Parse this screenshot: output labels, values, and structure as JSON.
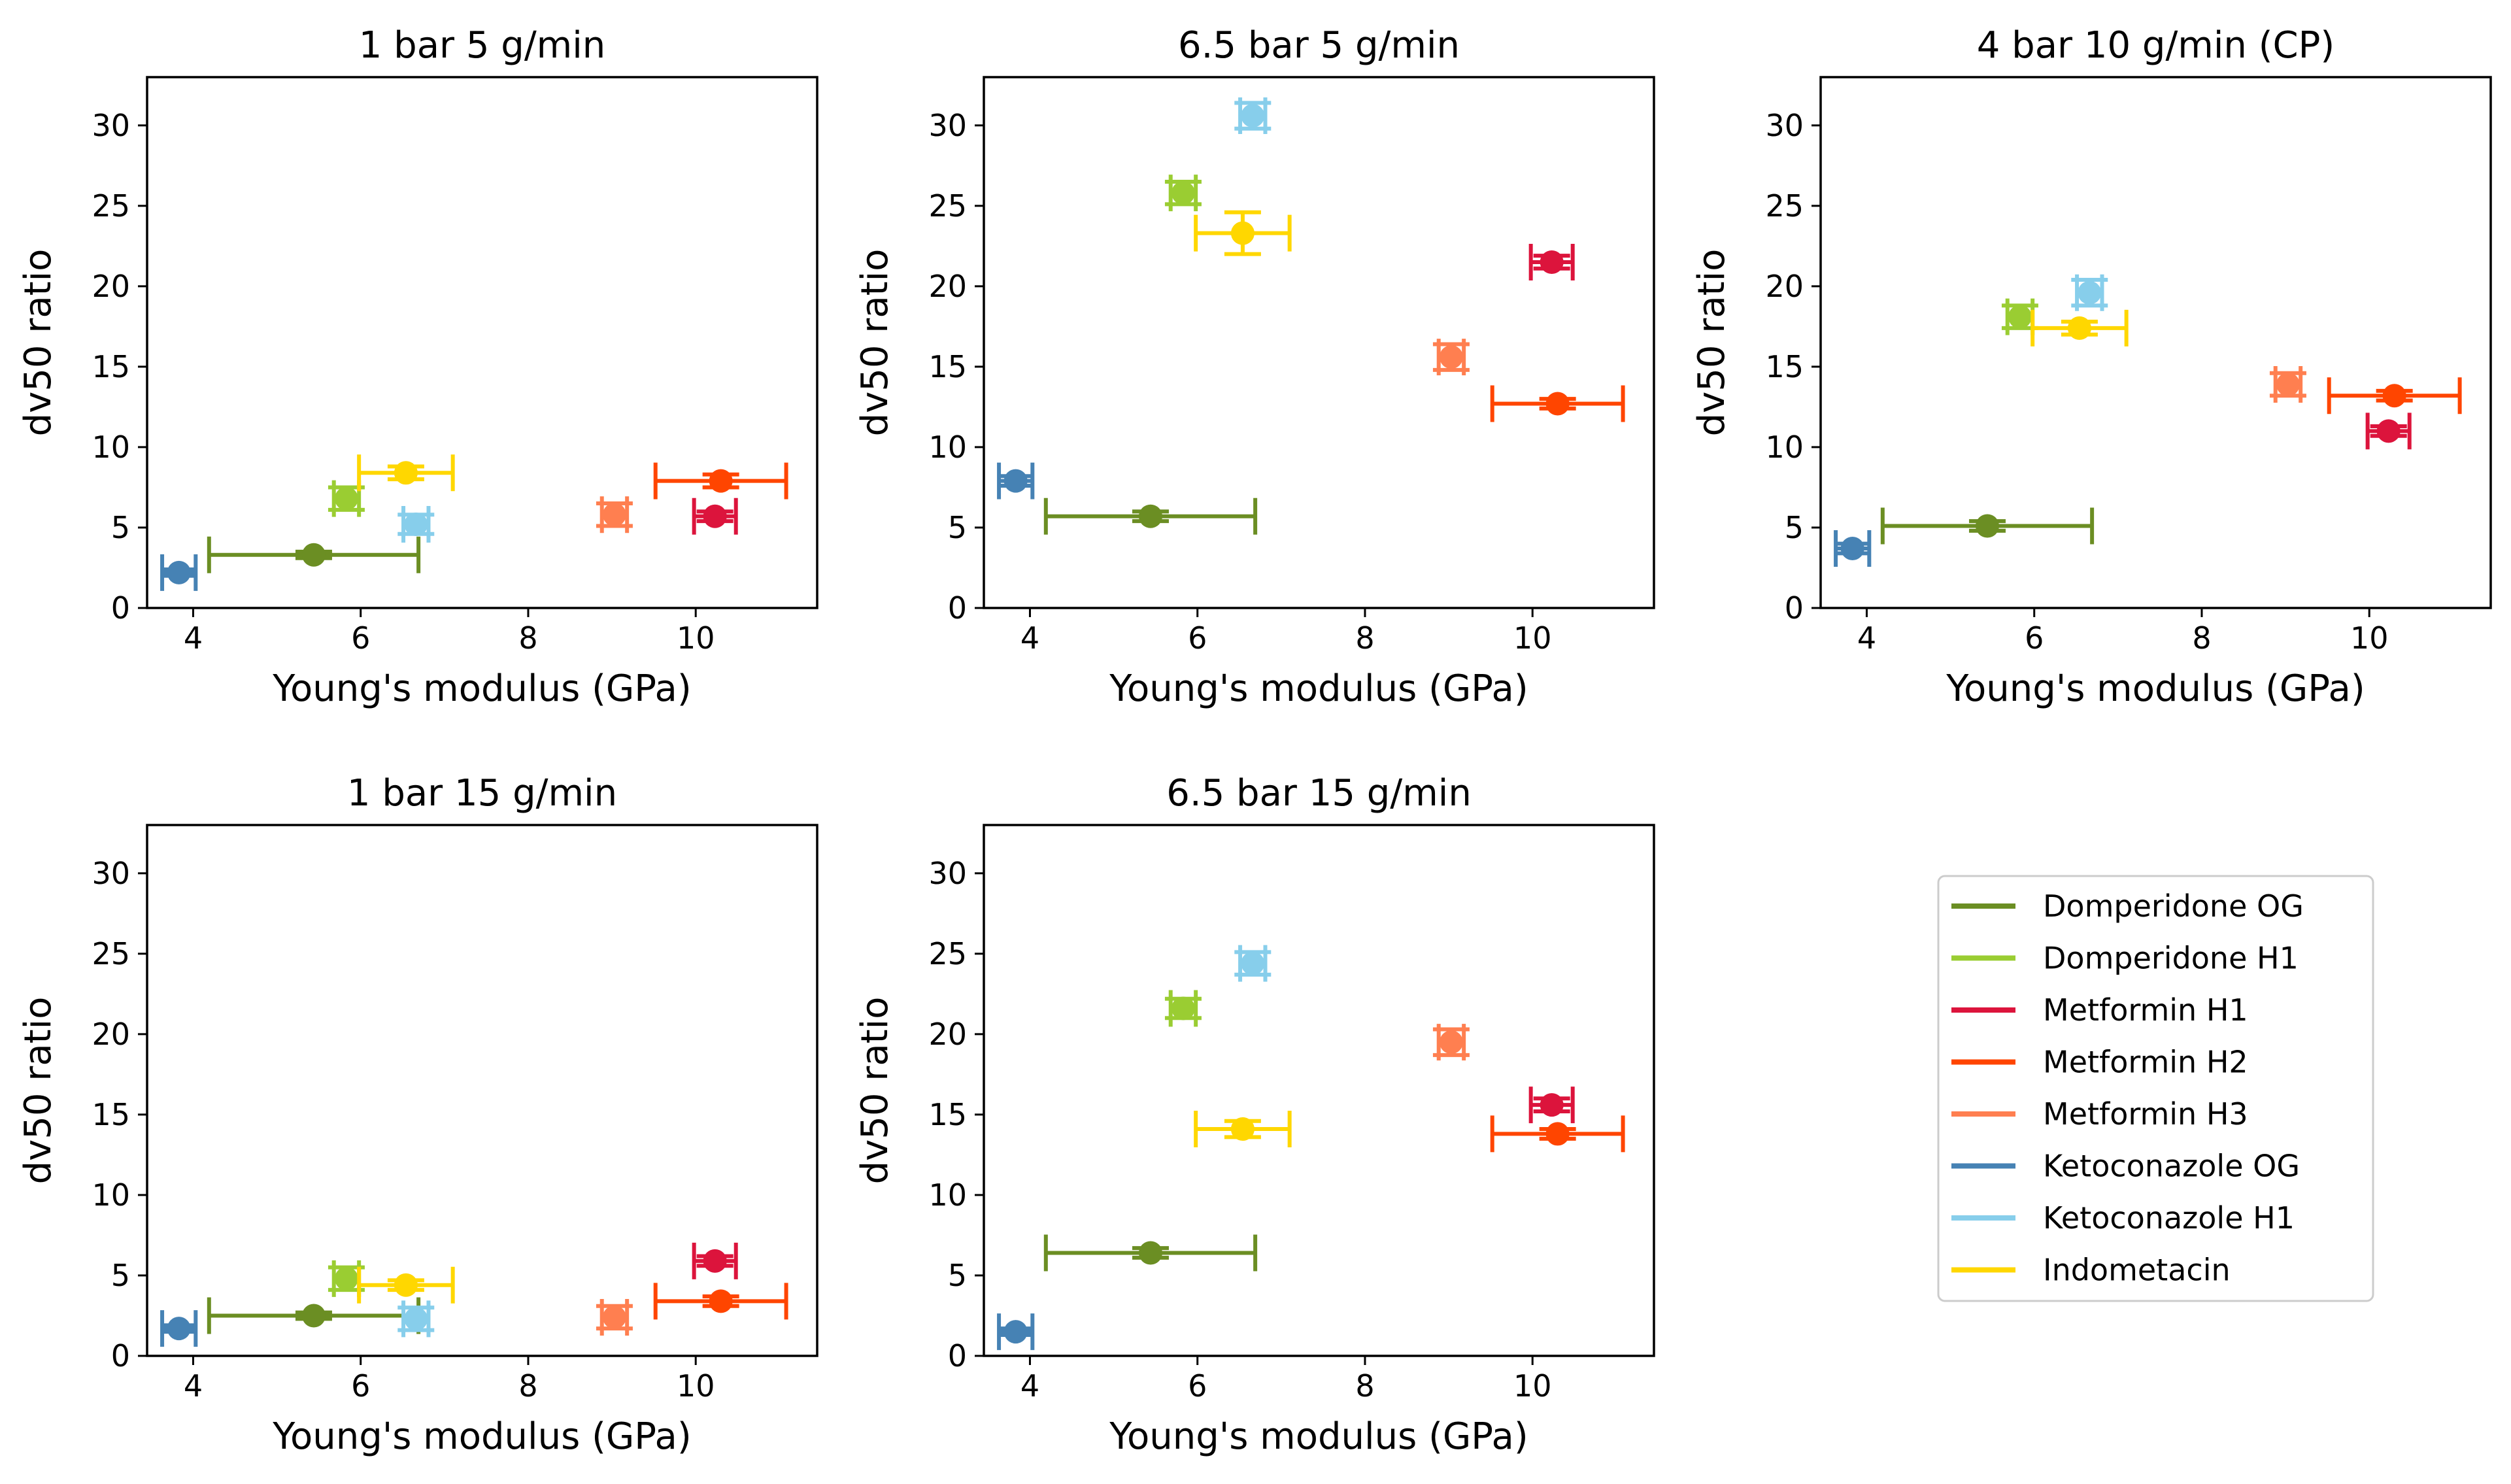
{
  "chart_data": {
    "type": "scatter",
    "xlabel": "Young's modulus (GPa)",
    "ylabel": "dv50 ratio",
    "xlim": [
      3.45,
      11.45
    ],
    "ylim": [
      0,
      33
    ],
    "xticks": [
      4,
      6,
      8,
      10
    ],
    "yticks": [
      0,
      5,
      10,
      15,
      20,
      25,
      30
    ],
    "grid": false,
    "legend": {
      "placement": "bottom-right",
      "entries": [
        {
          "name": "Domperidone OG",
          "color": "#6b8e23"
        },
        {
          "name": "Domperidone H1",
          "color": "#9acd32"
        },
        {
          "name": "Metformin H1",
          "color": "#dc143c"
        },
        {
          "name": "Metformin H2",
          "color": "#ff4500"
        },
        {
          "name": "Metformin H3",
          "color": "#ff7f50"
        },
        {
          "name": "Ketoconazole OG",
          "color": "#4682b4"
        },
        {
          "name": "Ketoconazole H1",
          "color": "#87ceeb"
        },
        {
          "name": "Indometacin",
          "color": "#ffd700"
        }
      ]
    },
    "x_values": {
      "Domperidone OG": {
        "x": 5.44,
        "xerr": 1.25
      },
      "Domperidone H1": {
        "x": 5.83,
        "xerr": 0.15
      },
      "Metformin H1": {
        "x": 10.23,
        "xerr": 0.25
      },
      "Metformin H2": {
        "x": 10.3,
        "xerr": 0.78
      },
      "Metformin H3": {
        "x": 9.03,
        "xerr": 0.15
      },
      "Ketoconazole OG": {
        "x": 3.83,
        "xerr": 0.2
      },
      "Ketoconazole H1": {
        "x": 6.66,
        "xerr": 0.15
      },
      "Indometacin": {
        "x": 6.54,
        "xerr": 0.56
      }
    },
    "panels": [
      {
        "title": "1 bar 5 g/min",
        "points": [
          {
            "series": "Domperidone OG",
            "y": 3.3,
            "yerr": 0.2
          },
          {
            "series": "Domperidone H1",
            "y": 6.8,
            "yerr": 0.7
          },
          {
            "series": "Metformin H1",
            "y": 5.7,
            "yerr": 0.3
          },
          {
            "series": "Metformin H2",
            "y": 7.9,
            "yerr": 0.4
          },
          {
            "series": "Metformin H3",
            "y": 5.8,
            "yerr": 0.7
          },
          {
            "series": "Ketoconazole OG",
            "y": 2.2,
            "yerr": 0.2
          },
          {
            "series": "Ketoconazole H1",
            "y": 5.2,
            "yerr": 0.6
          },
          {
            "series": "Indometacin",
            "y": 8.4,
            "yerr": 0.4
          }
        ]
      },
      {
        "title": "6.5 bar 5 g/min",
        "points": [
          {
            "series": "Domperidone OG",
            "y": 5.7,
            "yerr": 0.3
          },
          {
            "series": "Domperidone H1",
            "y": 25.8,
            "yerr": 0.7
          },
          {
            "series": "Metformin H1",
            "y": 21.5,
            "yerr": 0.4
          },
          {
            "series": "Metformin H2",
            "y": 12.7,
            "yerr": 0.3
          },
          {
            "series": "Metformin H3",
            "y": 15.6,
            "yerr": 0.8
          },
          {
            "series": "Ketoconazole OG",
            "y": 7.9,
            "yerr": 0.3
          },
          {
            "series": "Ketoconazole H1",
            "y": 30.6,
            "yerr": 0.8
          },
          {
            "series": "Indometacin",
            "y": 23.3,
            "yerr": 1.3
          }
        ]
      },
      {
        "title": "4 bar 10 g/min (CP)",
        "points": [
          {
            "series": "Domperidone OG",
            "y": 5.1,
            "yerr": 0.3
          },
          {
            "series": "Domperidone H1",
            "y": 18.1,
            "yerr": 0.7
          },
          {
            "series": "Metformin H1",
            "y": 11.0,
            "yerr": 0.3
          },
          {
            "series": "Metformin H2",
            "y": 13.2,
            "yerr": 0.3
          },
          {
            "series": "Metformin H3",
            "y": 13.9,
            "yerr": 0.7
          },
          {
            "series": "Ketoconazole OG",
            "y": 3.7,
            "yerr": 0.3
          },
          {
            "series": "Ketoconazole H1",
            "y": 19.6,
            "yerr": 0.8
          },
          {
            "series": "Indometacin",
            "y": 17.4,
            "yerr": 0.4
          }
        ]
      },
      {
        "title": "1 bar 15 g/min",
        "points": [
          {
            "series": "Domperidone OG",
            "y": 2.5,
            "yerr": 0.2
          },
          {
            "series": "Domperidone H1",
            "y": 4.8,
            "yerr": 0.7
          },
          {
            "series": "Metformin H1",
            "y": 5.9,
            "yerr": 0.3
          },
          {
            "series": "Metformin H2",
            "y": 3.4,
            "yerr": 0.3
          },
          {
            "series": "Metformin H3",
            "y": 2.4,
            "yerr": 0.7
          },
          {
            "series": "Ketoconazole OG",
            "y": 1.7,
            "yerr": 0.2
          },
          {
            "series": "Ketoconazole H1",
            "y": 2.3,
            "yerr": 0.7
          },
          {
            "series": "Indometacin",
            "y": 4.4,
            "yerr": 0.3
          }
        ]
      },
      {
        "title": "6.5 bar 15 g/min",
        "points": [
          {
            "series": "Domperidone OG",
            "y": 6.4,
            "yerr": 0.3
          },
          {
            "series": "Domperidone H1",
            "y": 21.6,
            "yerr": 0.6
          },
          {
            "series": "Metformin H1",
            "y": 15.6,
            "yerr": 0.4
          },
          {
            "series": "Metformin H2",
            "y": 13.8,
            "yerr": 0.3
          },
          {
            "series": "Metformin H3",
            "y": 19.5,
            "yerr": 0.8
          },
          {
            "series": "Ketoconazole OG",
            "y": 1.5,
            "yerr": 0.2
          },
          {
            "series": "Ketoconazole H1",
            "y": 24.4,
            "yerr": 0.7
          },
          {
            "series": "Indometacin",
            "y": 14.1,
            "yerr": 0.5
          }
        ]
      }
    ]
  }
}
